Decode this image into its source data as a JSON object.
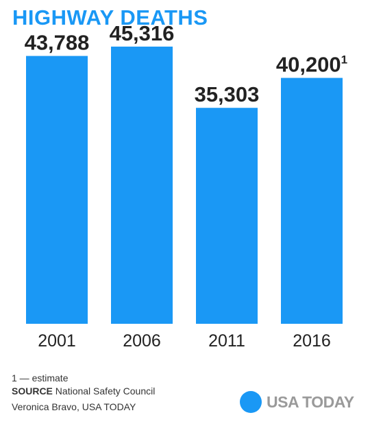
{
  "title": "HIGHWAY DEATHS",
  "chart_data": {
    "type": "bar",
    "categories": [
      "2001",
      "2006",
      "2011",
      "2016"
    ],
    "values": [
      43788,
      45316,
      35303,
      40200
    ],
    "value_labels": [
      "43,788",
      "45,316",
      "35,303",
      "40,200"
    ],
    "value_footnotes": [
      "",
      "",
      "",
      "1"
    ],
    "bar_color": "#1a98f5",
    "title": "HIGHWAY DEATHS",
    "xlabel": "",
    "ylabel": "",
    "ylim": [
      0,
      48000
    ],
    "grid": false,
    "legend": "none"
  },
  "footer": {
    "note": "1 — estimate",
    "source_label": "SOURCE",
    "source_text": "National Safety Council",
    "credit": "Veronica Bravo, USA TODAY"
  },
  "logo": {
    "text": "USA TODAY",
    "icon": "usa-today-dot-icon"
  }
}
